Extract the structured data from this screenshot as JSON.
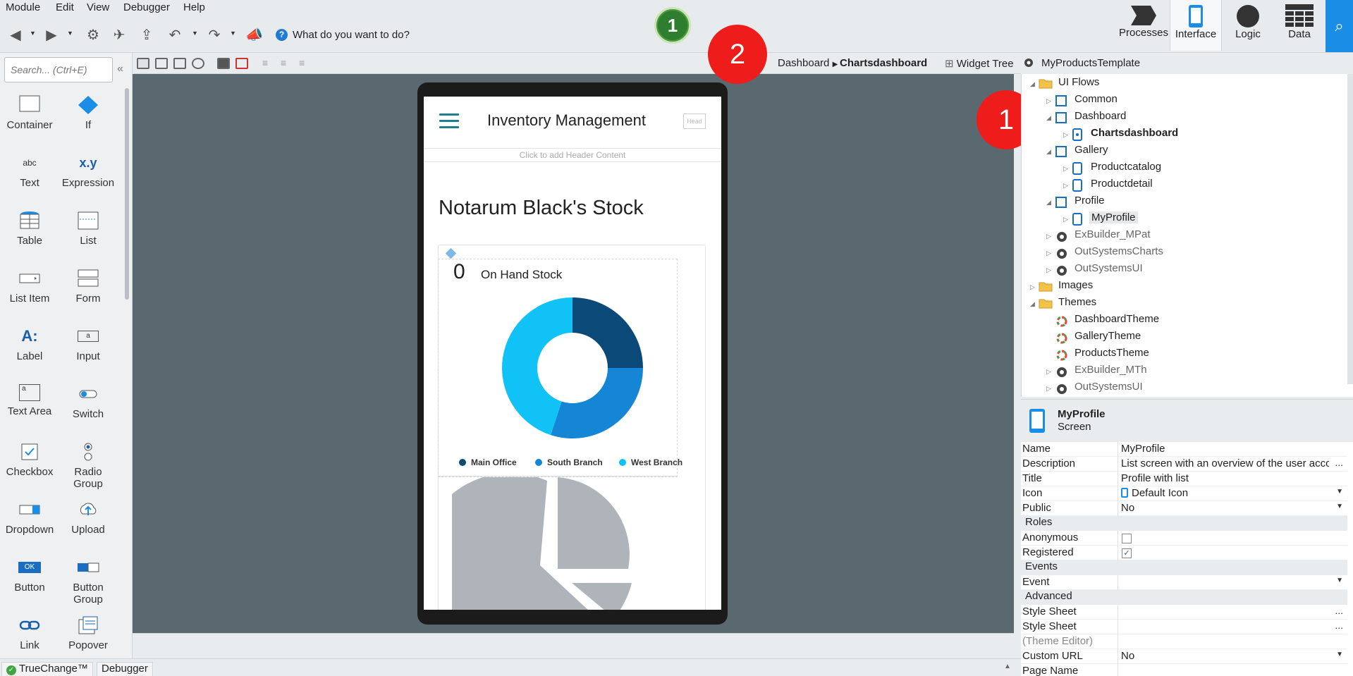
{
  "menu": [
    "Module",
    "Edit",
    "View",
    "Debugger",
    "Help"
  ],
  "toolbar": {
    "search_prompt": "What do you want to do?",
    "help_glyph": "?",
    "green_badge": "1"
  },
  "tabs": [
    {
      "label": "Processes",
      "icon": "processes-icon"
    },
    {
      "label": "Interface",
      "icon": "interface-icon",
      "active": true
    },
    {
      "label": "Logic",
      "icon": "logic-icon"
    },
    {
      "label": "Data",
      "icon": "data-icon"
    }
  ],
  "breadcrumb": {
    "parent": "Dashboard",
    "current": "Chartsdashboard"
  },
  "widget_tree_label": "Widget Tree",
  "palette": {
    "search_placeholder": "Search... (Ctrl+E)",
    "items": [
      "Container",
      "If",
      "Text",
      "Expression",
      "Table",
      "List",
      "List Item",
      "Form",
      "Label",
      "Input",
      "Text Area",
      "Switch",
      "Checkbox",
      "Radio Group",
      "Dropdown",
      "Upload",
      "Button",
      "Button Group",
      "Link",
      "Popover"
    ],
    "icon_text": {
      "text": "abc",
      "expression": "x.y",
      "label": "A:",
      "input": "a",
      "textarea": "a",
      "button": "OK"
    }
  },
  "screen": {
    "app_title": "Inventory Management",
    "head_placeholder": "Head",
    "header_hint": "Click to add Header Content",
    "page_title": "Notarum Black's Stock",
    "stat_value": "0",
    "stat_label": "On Hand Stock"
  },
  "chart_data": {
    "type": "pie",
    "categories": [
      "Main Office",
      "South Branch",
      "West Branch"
    ],
    "values": [
      25,
      30,
      45
    ],
    "colors": [
      "#0b4a78",
      "#1586d6",
      "#11c2f7"
    ],
    "donut": true,
    "legend": "bottom"
  },
  "tree": {
    "root": "MyProductsTemplate",
    "nodes": [
      "UI Flows",
      "Common",
      "Dashboard",
      "Chartsdashboard",
      "Gallery",
      "Productcatalog",
      "Productdetail",
      "Profile",
      "MyProfile",
      "ExBuilder_MPat",
      "OutSystemsCharts",
      "OutSystemsUI",
      "Images",
      "Themes",
      "DashboardTheme",
      "GalleryTheme",
      "ProductsTheme",
      "ExBuilder_MTh",
      "OutSystemsUI"
    ]
  },
  "props_head": {
    "name": "MyProfile",
    "type": "Screen"
  },
  "props": {
    "name_k": "Name",
    "name_v": "MyProfile",
    "desc_k": "Description",
    "desc_v": "List screen with an overview of the user account",
    "title_k": "Title",
    "title_v": "Profile with list",
    "icon_k": "Icon",
    "icon_v": "Default Icon",
    "public_k": "Public",
    "public_v": "No",
    "roles": "Roles",
    "anon_k": "Anonymous",
    "reg_k": "Registered",
    "events": "Events",
    "event_k": "Event",
    "advanced": "Advanced",
    "style1_k": "Style Sheet",
    "style2_k": "Style Sheet",
    "theme_k": "(Theme Editor)",
    "url_k": "Custom URL",
    "url_v": "No",
    "page_k": "Page Name",
    "ellipsis": "...",
    "check": "✓"
  },
  "annotations": [
    "1",
    "2",
    "1"
  ],
  "status": {
    "truechange": "TrueChange™",
    "debugger": "Debugger"
  },
  "colors": {
    "accent": "#1a8ee6",
    "teal": "#1d7f8e",
    "canvas": "#5a6870",
    "badge_red": "#ef1c1c"
  }
}
